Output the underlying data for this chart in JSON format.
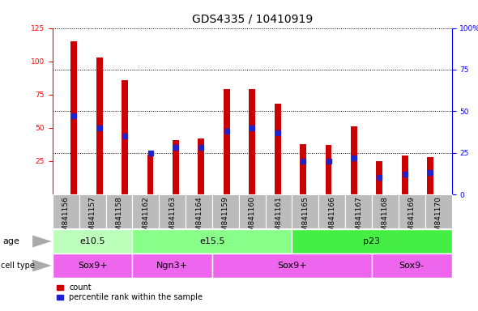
{
  "title": "GDS4335 / 10410919",
  "samples": [
    "GSM841156",
    "GSM841157",
    "GSM841158",
    "GSM841162",
    "GSM841163",
    "GSM841164",
    "GSM841159",
    "GSM841160",
    "GSM841161",
    "GSM841165",
    "GSM841166",
    "GSM841167",
    "GSM841168",
    "GSM841169",
    "GSM841170"
  ],
  "counts": [
    115,
    103,
    86,
    30,
    41,
    42,
    79,
    79,
    68,
    38,
    37,
    51,
    25,
    29,
    28
  ],
  "percentiles": [
    47,
    40,
    35,
    25,
    28,
    28,
    38,
    40,
    37,
    20,
    20,
    22,
    10,
    12,
    13
  ],
  "age_groups": [
    {
      "label": "e10.5",
      "start": 0,
      "end": 3,
      "color": "#bbffbb"
    },
    {
      "label": "e15.5",
      "start": 3,
      "end": 9,
      "color": "#88ff88"
    },
    {
      "label": "p23",
      "start": 9,
      "end": 15,
      "color": "#44ee44"
    }
  ],
  "cell_type_groups": [
    {
      "label": "Sox9+",
      "start": 0,
      "end": 3,
      "color": "#ee66ee"
    },
    {
      "label": "Ngn3+",
      "start": 3,
      "end": 6,
      "color": "#ee66ee"
    },
    {
      "label": "Sox9+",
      "start": 6,
      "end": 12,
      "color": "#ee66ee"
    },
    {
      "label": "Sox9-",
      "start": 12,
      "end": 15,
      "color": "#ee66ee"
    }
  ],
  "bar_color_red": "#cc0000",
  "bar_color_blue": "#2222cc",
  "red_bar_width": 0.25,
  "blue_marker_size": 4.5,
  "ylim_left": [
    0,
    125
  ],
  "ylim_right": [
    0,
    100
  ],
  "yticks_left": [
    25,
    50,
    75,
    100,
    125
  ],
  "yticks_right": [
    0,
    25,
    50,
    75,
    100
  ],
  "ytick_labels_right": [
    "0",
    "25",
    "50",
    "75",
    "100%"
  ],
  "title_fontsize": 10,
  "tick_fontsize": 6.5,
  "label_fontsize": 8,
  "grid_color": "#000000",
  "grid_linestyle": ":",
  "grid_linewidth": 0.7,
  "bg_color": "#ffffff",
  "xticklabel_bg": "#bbbbbb"
}
